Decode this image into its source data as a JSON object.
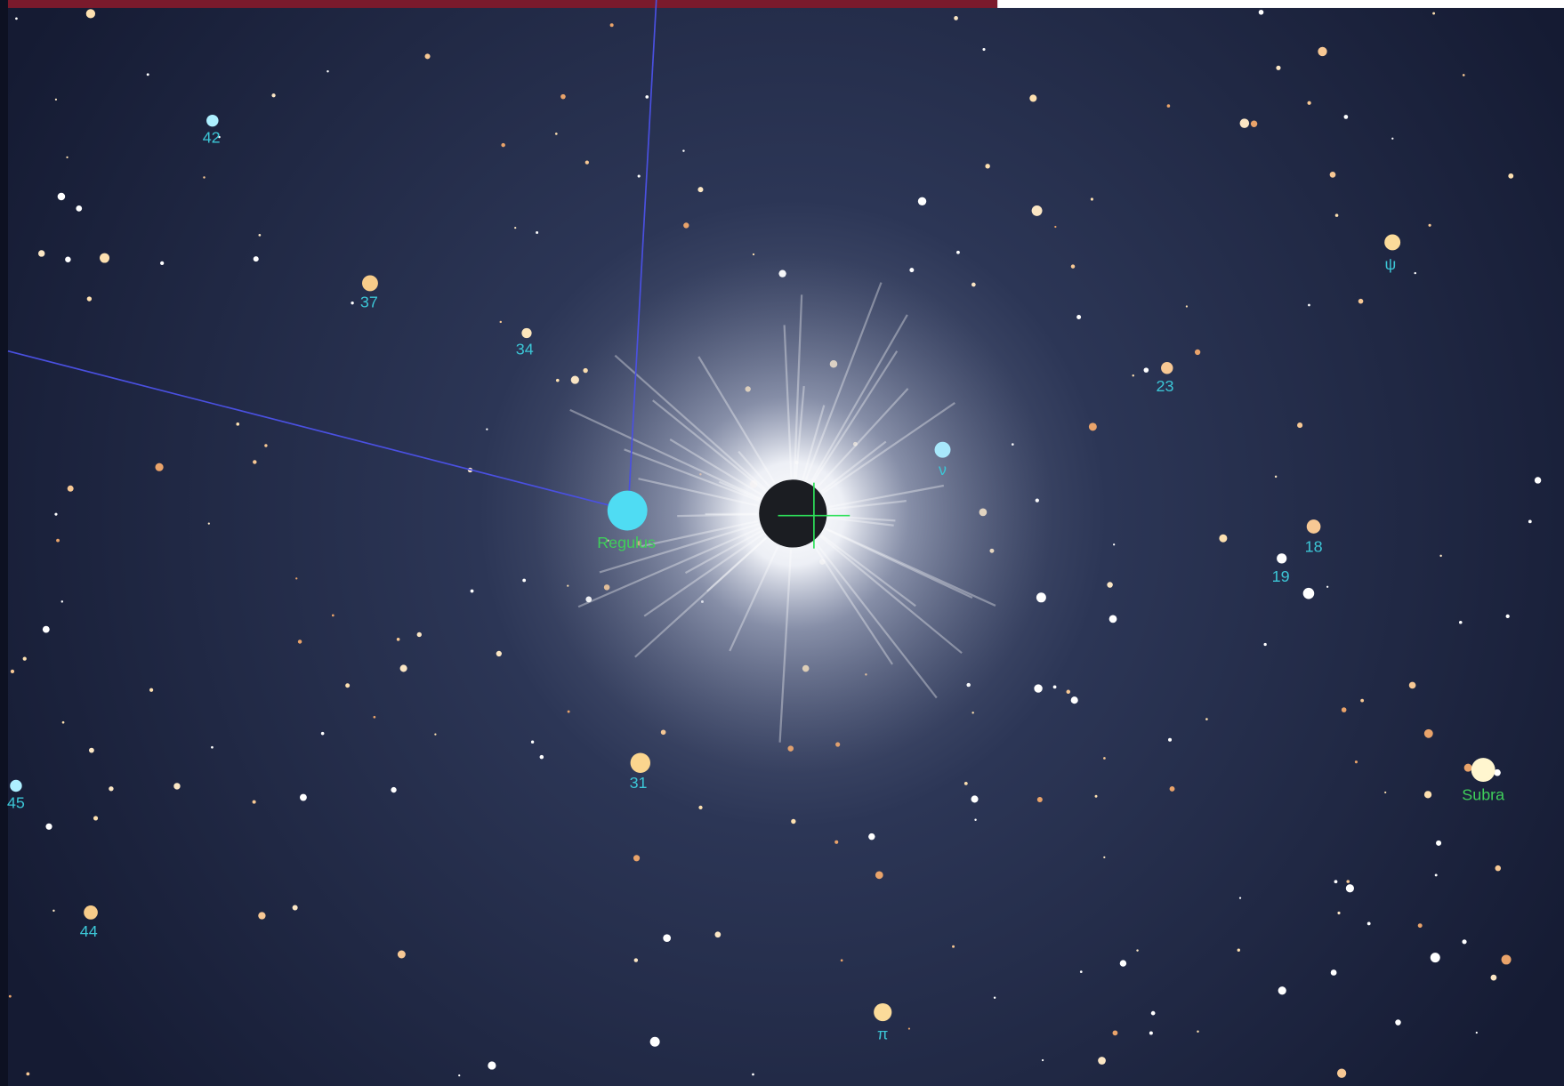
{
  "stars": [
    {
      "label": "42"
    },
    {
      "label": "37"
    },
    {
      "label": "34"
    },
    {
      "label": "Regulus"
    },
    {
      "label": "ν"
    },
    {
      "label": "23"
    },
    {
      "label": "ψ"
    },
    {
      "label": "18"
    },
    {
      "label": "19"
    },
    {
      "label": "31"
    },
    {
      "label": "45"
    },
    {
      "label": "44"
    },
    {
      "label": "π"
    },
    {
      "label": "Subra"
    }
  ]
}
